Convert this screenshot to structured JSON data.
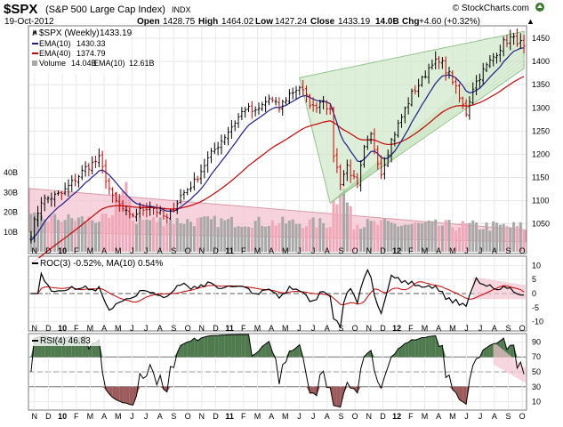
{
  "header": {
    "symbol": "$SPX",
    "name": "(S&P 500 Large Cap Index)",
    "exchange": "INDX",
    "brand": "© StockCharts.com",
    "date": "19-Oct-2012",
    "open_label": "Open",
    "open": "1428.75",
    "high_label": "High",
    "high": "1464.02",
    "low_label": "Low",
    "low": "1427.24",
    "close_label": "Close",
    "close": "1433.19",
    "volume": "14.0B",
    "chg_label": "Chg",
    "chg": "+4.60 (+0.32%)",
    "chg_arrow": "▲"
  },
  "colors": {
    "ema10": "#1c1c8c",
    "ema40": "#cc0000",
    "wedge_fill": "#cfe8c8",
    "wedge_line": "#8fc488",
    "channel_fill": "#f4c6d2",
    "up_bar": "#000000",
    "down_bar": "#cc0000",
    "vol_up": "#a8a8a8",
    "vol_down": "#f0a8b8",
    "rsi_fill_high": "#4e7a4e",
    "rsi_fill_low": "#9c5a5a"
  },
  "chart_data": [
    {
      "type": "candlestick",
      "panel": "price",
      "title": "$SPX (Weekly) 1433.19",
      "legend": [
        {
          "label": "$SPX (Weekly)",
          "value": "1433.19"
        },
        {
          "label": "EMA(10)",
          "value": "1430.33"
        },
        {
          "label": "EMA(40)",
          "value": "1374.79"
        },
        {
          "label": "Volume",
          "value": "14.04B",
          "extra_label": "EMA(10)",
          "extra_value": "12.61B"
        }
      ],
      "y_ticks": [
        1050,
        1100,
        1150,
        1200,
        1250,
        1300,
        1350,
        1400,
        1450
      ],
      "y_range": [
        988,
        1475
      ],
      "volume_ticks": [
        "10B",
        "20B",
        "30B",
        "40B"
      ],
      "volume_range": [
        0,
        45
      ],
      "x_months": [
        "N",
        "D",
        "10",
        "F",
        "M",
        "A",
        "M",
        "J",
        "J",
        "A",
        "S",
        "O",
        "N",
        "D",
        "11",
        "F",
        "M",
        "A",
        "M",
        "J",
        "J",
        "A",
        "S",
        "O",
        "N",
        "D",
        "12",
        "F",
        "M",
        "A",
        "M",
        "J",
        "J",
        "A",
        "S",
        "O"
      ],
      "bold_months": [
        "10",
        "11",
        "12"
      ],
      "anchors": [
        [
          0,
          1030
        ],
        [
          3,
          1100
        ],
        [
          9,
          1115
        ],
        [
          16,
          1170
        ],
        [
          20,
          1190
        ],
        [
          24,
          1105
        ],
        [
          29,
          1065
        ],
        [
          35,
          1090
        ],
        [
          40,
          1060
        ],
        [
          44,
          1110
        ],
        [
          48,
          1140
        ],
        [
          52,
          1190
        ],
        [
          56,
          1230
        ],
        [
          60,
          1270
        ],
        [
          63,
          1300
        ],
        [
          66,
          1290
        ],
        [
          70,
          1320
        ],
        [
          73,
          1300
        ],
        [
          76,
          1330
        ],
        [
          79,
          1345
        ],
        [
          83,
          1300
        ],
        [
          86,
          1320
        ],
        [
          88,
          1290
        ],
        [
          89,
          1200
        ],
        [
          91,
          1140
        ],
        [
          93,
          1175
        ],
        [
          96,
          1130
        ],
        [
          98,
          1210
        ],
        [
          100,
          1240
        ],
        [
          103,
          1160
        ],
        [
          106,
          1230
        ],
        [
          109,
          1280
        ],
        [
          112,
          1330
        ],
        [
          115,
          1360
        ],
        [
          118,
          1400
        ],
        [
          121,
          1395
        ],
        [
          124,
          1360
        ],
        [
          126,
          1320
        ],
        [
          128,
          1290
        ],
        [
          130,
          1345
        ],
        [
          133,
          1380
        ],
        [
          136,
          1410
        ],
        [
          139,
          1440
        ],
        [
          141,
          1450
        ],
        [
          143,
          1445
        ],
        [
          145,
          1433
        ]
      ],
      "ema10_last": 1430.33,
      "ema40_last": 1374.79,
      "wedge": {
        "apex_week": 88,
        "apex_value": 1095,
        "upper_start": [
          79,
          1365
        ],
        "lower_start": [
          79,
          1375
        ],
        "upper_end": [
          145,
          1465
        ],
        "lower_end": [
          145,
          1385
        ]
      },
      "volume_channel": {
        "upper_start": 32,
        "upper_end": 11,
        "lower_start": 10,
        "lower_end": 5
      }
    },
    {
      "type": "line",
      "panel": "roc",
      "title": "ROC(3) -0.52%, MA(10) 0.54%",
      "series": [
        {
          "name": "ROC(3)",
          "last": -0.52,
          "color": "#000000"
        },
        {
          "name": "MA(10)",
          "last": 0.54,
          "color": "#cc0000"
        }
      ],
      "y_ticks": [
        -10,
        -5,
        0,
        5,
        10
      ],
      "y_range": [
        -13,
        13
      ]
    },
    {
      "type": "line",
      "panel": "rsi",
      "title": "RSI(4) 46.83",
      "series": [
        {
          "name": "RSI(4)",
          "last": 46.83,
          "color": "#000000"
        }
      ],
      "y_ticks": [
        10,
        30,
        50,
        70,
        90
      ],
      "y_range": [
        0,
        100
      ],
      "overbought": 70,
      "oversold": 30
    }
  ]
}
